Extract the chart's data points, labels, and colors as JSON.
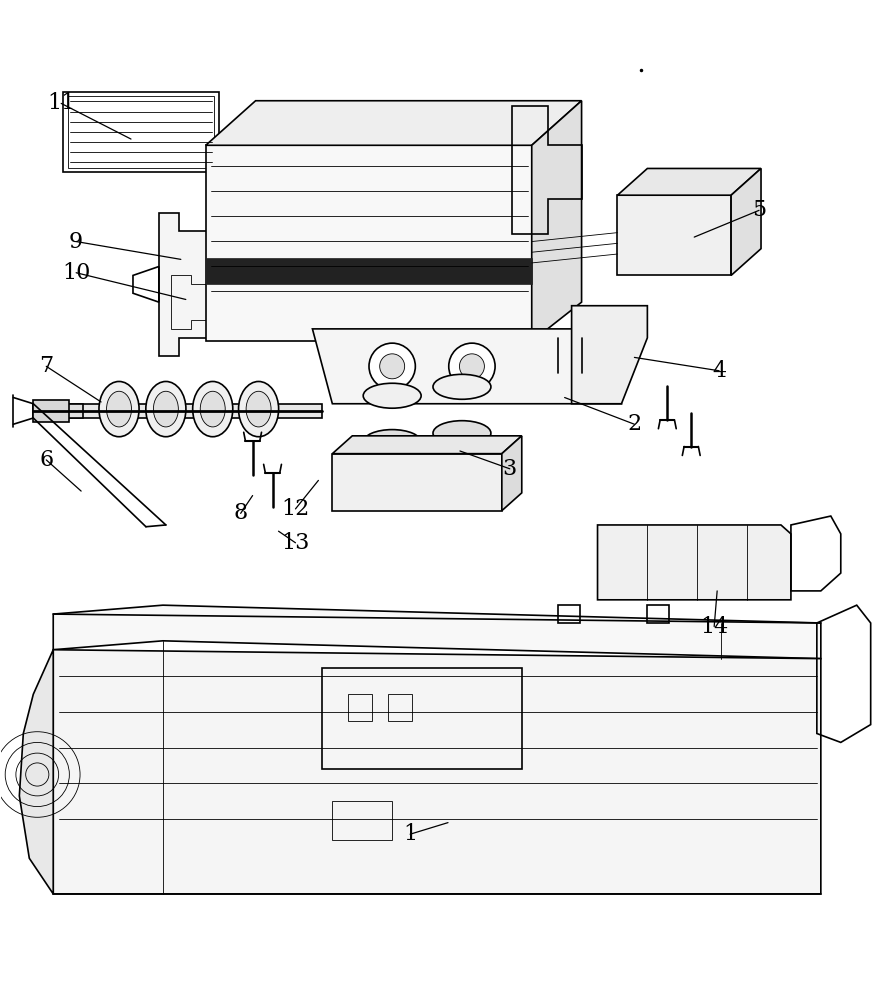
{
  "figure_width": 8.94,
  "figure_height": 10.0,
  "dpi": 100,
  "bg_color": "#ffffff",
  "line_color": "#000000",
  "line_width": 1.2,
  "thin_line": 0.6,
  "thick_line": 2.0,
  "font_size": 16,
  "label_data": [
    [
      "11",
      60,
      55,
      130,
      95
    ],
    [
      "9",
      75,
      210,
      180,
      230
    ],
    [
      "10",
      75,
      245,
      185,
      275
    ],
    [
      "7",
      45,
      350,
      100,
      390
    ],
    [
      "6",
      45,
      455,
      80,
      490
    ],
    [
      "2",
      635,
      415,
      565,
      385
    ],
    [
      "3",
      510,
      465,
      460,
      445
    ],
    [
      "4",
      720,
      355,
      635,
      340
    ],
    [
      "5",
      760,
      175,
      695,
      205
    ],
    [
      "8",
      240,
      515,
      252,
      495
    ],
    [
      "12",
      295,
      510,
      318,
      478
    ],
    [
      "13",
      295,
      548,
      278,
      535
    ],
    [
      "14",
      715,
      642,
      718,
      602
    ],
    [
      "1",
      410,
      875,
      448,
      862
    ]
  ]
}
